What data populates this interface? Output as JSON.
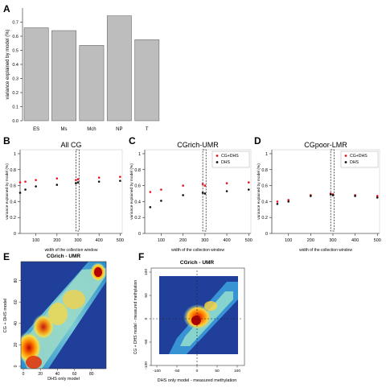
{
  "panels": {
    "A": {
      "letter": "A"
    },
    "B": {
      "letter": "B"
    },
    "C": {
      "letter": "C"
    },
    "D": {
      "letter": "D"
    },
    "E": {
      "letter": "E"
    },
    "F": {
      "letter": "F"
    }
  },
  "chart_data": [
    {
      "panel": "A",
      "type": "bar",
      "categories": [
        "ES",
        "Ms",
        "Mch",
        "NP",
        "T"
      ],
      "values": [
        0.66,
        0.64,
        0.535,
        0.745,
        0.575
      ],
      "ylabel": "variance explained by model (%)",
      "ylim": [
        0,
        0.8
      ],
      "yticks": [
        "0.0",
        "0.1",
        "0.2",
        "0.3",
        "0.4",
        "0.5",
        "0.6",
        "0.7"
      ],
      "bar_color": "#bdbdbd"
    },
    {
      "panel": "B",
      "type": "scatter",
      "title": "All CG",
      "xlabel": "width of the collection window",
      "ylabel": "variance explained by model (%)",
      "xlim": [
        25,
        510
      ],
      "ylim": [
        0,
        1.05
      ],
      "xticks": [
        "100",
        "200",
        "300",
        "400",
        "500"
      ],
      "yticks": [
        "0",
        "0.2",
        "0.4",
        "0.6",
        "0.8",
        "1"
      ],
      "highlight_window": [
        290,
        305
      ],
      "series": [
        {
          "name": "",
          "color": "#e8101c",
          "x": [
            25,
            50,
            100,
            200,
            290,
            300,
            400,
            500
          ],
          "y": [
            0.64,
            0.65,
            0.67,
            0.69,
            0.67,
            0.68,
            0.7,
            0.71
          ]
        },
        {
          "name": "",
          "color": "#111111",
          "x": [
            25,
            50,
            100,
            200,
            290,
            300,
            400,
            500
          ],
          "y": [
            0.51,
            0.55,
            0.59,
            0.61,
            0.63,
            0.64,
            0.65,
            0.66
          ]
        }
      ]
    },
    {
      "panel": "C",
      "type": "scatter",
      "title": "CGrich-UMR",
      "xlabel": "width of the collection window",
      "ylabel": "variance explained by model (%)",
      "xlim": [
        25,
        510
      ],
      "ylim": [
        0,
        1.05
      ],
      "xticks": [
        "100",
        "200",
        "300",
        "400",
        "500"
      ],
      "yticks": [
        "0",
        "0.2",
        "0.4",
        "0.6",
        "0.8",
        "1"
      ],
      "highlight_window": [
        290,
        305
      ],
      "legend": [
        "CG+DHS",
        "DHS"
      ],
      "series": [
        {
          "name": "CG+DHS",
          "color": "#e8101c",
          "x": [
            50,
            100,
            200,
            290,
            300,
            400,
            500
          ],
          "y": [
            0.52,
            0.55,
            0.6,
            0.62,
            0.6,
            0.63,
            0.64
          ]
        },
        {
          "name": "DHS",
          "color": "#111111",
          "x": [
            50,
            100,
            200,
            290,
            300,
            400,
            500
          ],
          "y": [
            0.33,
            0.41,
            0.48,
            0.51,
            0.5,
            0.53,
            0.55
          ]
        }
      ]
    },
    {
      "panel": "D",
      "type": "scatter",
      "title": "CGpoor-LMR",
      "xlabel": "width of the collection window",
      "ylabel": "variance explained by model (%)",
      "xlim": [
        25,
        510
      ],
      "ylim": [
        0,
        1.05
      ],
      "xticks": [
        "100",
        "200",
        "300",
        "400",
        "500"
      ],
      "yticks": [
        "0",
        "0.2",
        "0.4",
        "0.6",
        "0.8",
        "1"
      ],
      "highlight_window": [
        290,
        305
      ],
      "legend": [
        "CG+DHS",
        "DHS"
      ],
      "series": [
        {
          "name": "CG+DHS",
          "color": "#e8101c",
          "x": [
            50,
            100,
            200,
            290,
            300,
            400,
            500
          ],
          "y": [
            0.4,
            0.42,
            0.48,
            0.5,
            0.49,
            0.48,
            0.47
          ]
        },
        {
          "name": "DHS",
          "color": "#111111",
          "x": [
            50,
            100,
            200,
            290,
            300,
            400,
            500
          ],
          "y": [
            0.37,
            0.4,
            0.47,
            0.49,
            0.48,
            0.47,
            0.45
          ]
        }
      ]
    },
    {
      "panel": "E",
      "type": "heatmap",
      "title": "CGrich - UMR",
      "xlabel": "DHS only model",
      "ylabel": "CG + DHS model",
      "xticks": [
        "0",
        "20",
        "40",
        "60",
        "80"
      ],
      "yticks": [
        "0",
        "20",
        "40",
        "60",
        "80"
      ]
    },
    {
      "panel": "F",
      "type": "heatmap",
      "title": "CGrich - UMR",
      "xlabel": "DHS only model - measured methylation",
      "ylabel": "CG + DHS model - measured methylation",
      "xticks": [
        "-100",
        "-50",
        "0",
        "50",
        "100"
      ],
      "yticks": [
        "-100",
        "-50",
        "0",
        "50",
        "100"
      ]
    }
  ]
}
